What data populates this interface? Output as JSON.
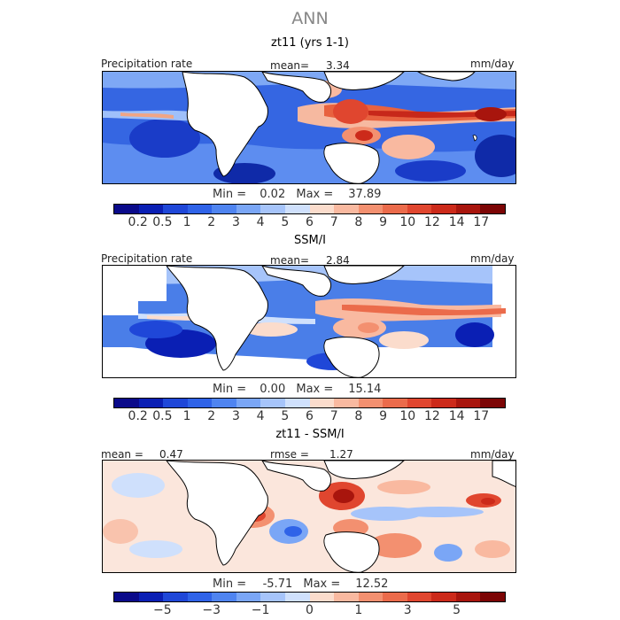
{
  "figure": {
    "title": "ANN"
  },
  "panels": [
    {
      "title": "zt11 (yrs 1-1)",
      "left_label": "Precipitation rate",
      "center_label": "mean=",
      "center_value": "3.34",
      "right_label": "mm/day",
      "min_label": "Min =",
      "min_value": "0.02",
      "max_label": "Max =",
      "max_value": "37.89"
    },
    {
      "title": "SSM/I",
      "left_label": "Precipitation rate",
      "center_label": "mean=",
      "center_value": "2.84",
      "right_label": "mm/day",
      "min_label": "Min =",
      "min_value": "0.00",
      "max_label": "Max =",
      "max_value": "15.14"
    },
    {
      "title": "zt11 - SSM/I",
      "left_label": "mean =",
      "left_value": "0.47",
      "center_label": "rmse =",
      "center_value": "1.27",
      "right_label": "mm/day",
      "min_label": "Min =",
      "min_value": "-5.71",
      "max_label": "Max =",
      "max_value": "12.52"
    }
  ],
  "colorbars": {
    "precip": {
      "colors": [
        "#0a0a8a",
        "#0a1fb4",
        "#1f47d8",
        "#2f63e8",
        "#4f84f0",
        "#7aa6f6",
        "#a6c4fa",
        "#cfe0fc",
        "#fbdccc",
        "#f9b9a0",
        "#f39070",
        "#eb6b4b",
        "#e0462f",
        "#cc2a1a",
        "#a8150d",
        "#7c0505"
      ],
      "ticks": [
        "0.2",
        "0.5",
        "1",
        "2",
        "3",
        "4",
        "5",
        "6",
        "7",
        "8",
        "9",
        "10",
        "12",
        "14",
        "17"
      ]
    },
    "diff": {
      "colors": [
        "#0a0a8a",
        "#0a1fb4",
        "#1f47d8",
        "#2f63e8",
        "#4f84f0",
        "#7aa6f6",
        "#a6c4fa",
        "#cfe0fc",
        "#fbdccc",
        "#f9b9a0",
        "#f39070",
        "#eb6b4b",
        "#e0462f",
        "#cc2a1a",
        "#a8150d",
        "#7c0505"
      ],
      "ticks": [
        "−5",
        "−3",
        "−1",
        "0",
        "1",
        "3",
        "5"
      ]
    }
  },
  "colors": {
    "wet": "#e0462f",
    "dry": "#1f47d8",
    "land": "#ffffff"
  }
}
